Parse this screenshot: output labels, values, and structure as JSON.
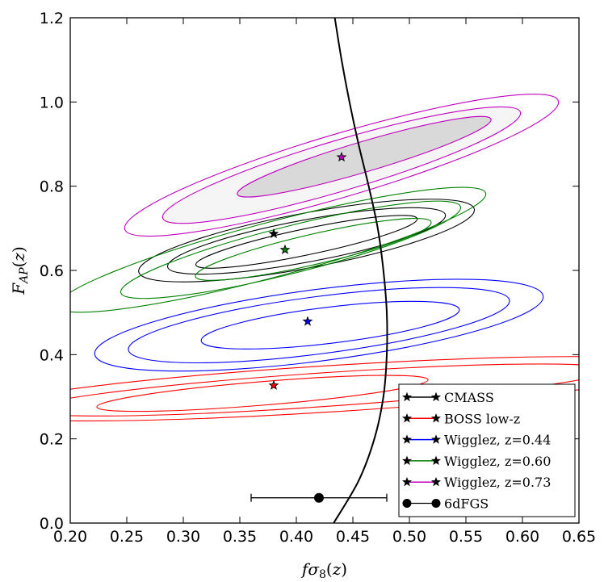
{
  "chart_data": {
    "type": "contour",
    "xlabel": "fσ8(z)",
    "ylabel": "F_AP(z)",
    "xlim": [
      0.2,
      0.65
    ],
    "ylim": [
      0.0,
      1.2
    ],
    "xticks": [
      0.2,
      0.25,
      0.3,
      0.35,
      0.4,
      0.45,
      0.5,
      0.55,
      0.6,
      0.65
    ],
    "xtick_labels": [
      "0.20",
      "0.25",
      "0.30",
      "0.35",
      "0.40",
      "0.45",
      "0.50",
      "0.55",
      "0.60",
      "0.65"
    ],
    "yticks": [
      0.0,
      0.2,
      0.4,
      0.6,
      0.8,
      1.0,
      1.2
    ],
    "ytick_labels": [
      "0.0",
      "0.2",
      "0.4",
      "0.6",
      "0.8",
      "1.0",
      "1.2"
    ],
    "series": [
      {
        "name": "CMASS",
        "color": "#000000",
        "center": [
          0.38,
          0.687
        ],
        "ellipses": [
          {
            "center": [
              0.409,
              0.668
            ],
            "semi_major": 0.1,
            "semi_minor": 0.031,
            "angle_deg": 11.8
          },
          {
            "center": [
              0.409,
              0.67
            ],
            "semi_major": 0.125,
            "semi_minor": 0.05,
            "angle_deg": 10.6
          },
          {
            "center": [
              0.409,
              0.671
            ],
            "semi_major": 0.151,
            "semi_minor": 0.065,
            "angle_deg": 10.6
          }
        ]
      },
      {
        "name": "BOSS low-z",
        "color": "#ff0000",
        "center": [
          0.38,
          0.327
        ],
        "ellipses": [
          {
            "center": [
              0.37,
              0.308
            ],
            "semi_major": 0.147,
            "semi_minor": 0.028,
            "angle_deg": 4.7
          },
          {
            "center": [
              0.42,
              0.316
            ],
            "semi_major": 0.258,
            "semi_minor": 0.04,
            "angle_deg": 3.9
          },
          {
            "center": [
              0.43,
              0.319
            ],
            "semi_major": 0.315,
            "semi_minor": 0.055,
            "angle_deg": 3.6
          }
        ]
      },
      {
        "name": "Wigglez, z=0.44",
        "color": "#0000ff",
        "center": [
          0.41,
          0.479
        ],
        "ellipses": [
          {
            "center": [
              0.43,
              0.47
            ],
            "semi_major": 0.115,
            "semi_minor": 0.043,
            "angle_deg": 6.9
          },
          {
            "center": [
              0.42,
              0.47
            ],
            "semi_major": 0.17,
            "semi_minor": 0.068,
            "angle_deg": 7.4
          },
          {
            "center": [
              0.42,
              0.47
            ],
            "semi_major": 0.2,
            "semi_minor": 0.085,
            "angle_deg": 7.4
          }
        ]
      },
      {
        "name": "Wigglez, z=0.60",
        "color": "#008000",
        "center": [
          0.39,
          0.649
        ],
        "ellipses": [
          {
            "center": [
              0.415,
              0.65
            ],
            "semi_major": 0.107,
            "semi_minor": 0.036,
            "angle_deg": 13
          },
          {
            "center": [
              0.395,
              0.649
            ],
            "semi_major": 0.155,
            "semi_minor": 0.056,
            "angle_deg": 14.2
          },
          {
            "center": [
              0.378,
              0.649
            ],
            "semi_major": 0.196,
            "semi_minor": 0.065,
            "angle_deg": 14.8
          }
        ]
      },
      {
        "name": "Wigglez, z=0.73",
        "color": "#bf00bf",
        "center": [
          0.44,
          0.869
        ],
        "ellipses": [
          {
            "center": [
              0.46,
              0.87
            ],
            "semi_major": 0.117,
            "semi_minor": 0.036,
            "angle_deg": 16.5,
            "fill": "#d9d9d9"
          },
          {
            "center": [
              0.44,
              0.85
            ],
            "semi_major": 0.165,
            "semi_minor": 0.06,
            "angle_deg": 16.5,
            "fill": "#f5f5f5"
          },
          {
            "center": [
              0.44,
              0.85
            ],
            "semi_major": 0.2,
            "semi_minor": 0.075,
            "angle_deg": 16.5
          }
        ]
      }
    ],
    "errorbar": {
      "name": "6dFGS",
      "x": 0.42,
      "y": 0.06,
      "xerr": 0.06,
      "color": "#000000"
    },
    "model_curve": [
      [
        0.433,
        0.0
      ],
      [
        0.455,
        0.1
      ],
      [
        0.469,
        0.2
      ],
      [
        0.477,
        0.3
      ],
      [
        0.48,
        0.4
      ],
      [
        0.48,
        0.5
      ],
      [
        0.477,
        0.6
      ],
      [
        0.472,
        0.7
      ],
      [
        0.464,
        0.8
      ],
      [
        0.455,
        0.9
      ],
      [
        0.447,
        1.0
      ],
      [
        0.44,
        1.1
      ],
      [
        0.434,
        1.2
      ]
    ],
    "legend": {
      "position": "lower-right",
      "entries": [
        "CMASS",
        "BOSS low-z",
        "Wigglez, z=0.44",
        "Wigglez, z=0.60",
        "Wigglez, z=0.73",
        "6dFGS"
      ]
    }
  }
}
